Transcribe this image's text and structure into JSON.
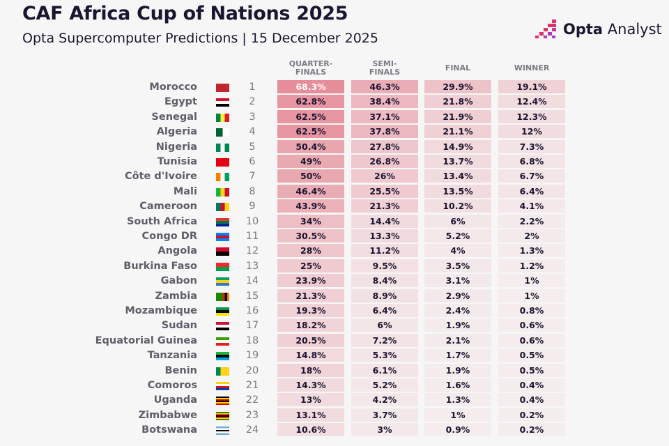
{
  "title": "CAF Africa Cup of Nations 2025",
  "subtitle": "Opta Supercomputer Predictions | 15 December 2025",
  "logo": {
    "bold": "Opta",
    "regular": " Analyst"
  },
  "accent": "#e0707f",
  "chart_data": {
    "type": "table",
    "columns": [
      "QUARTER-\nFINALS",
      "SEMI-\nFINALS",
      "FINAL",
      "WINNER"
    ],
    "column_labels": [
      [
        "QUARTER-",
        "FINALS"
      ],
      [
        "SEMI-",
        "FINALS"
      ],
      [
        "FINAL",
        ""
      ],
      [
        "WINNER",
        ""
      ]
    ],
    "rows": [
      {
        "team": "Morocco",
        "rank": "1",
        "flag": {
          "dir": "v",
          "colors": [
            "#c1272d"
          ]
        },
        "values": [
          68.3,
          46.3,
          29.9,
          19.1
        ]
      },
      {
        "team": "Egypt",
        "rank": "2",
        "flag": {
          "dir": "h",
          "colors": [
            "#ce1126",
            "#ffffff",
            "#000000"
          ]
        },
        "values": [
          62.8,
          38.4,
          21.8,
          12.4
        ]
      },
      {
        "team": "Senegal",
        "rank": "3",
        "flag": {
          "dir": "v",
          "colors": [
            "#00853f",
            "#fdef42",
            "#e31b23"
          ]
        },
        "values": [
          62.5,
          37.1,
          21.9,
          12.3
        ]
      },
      {
        "team": "Algeria",
        "rank": "4",
        "flag": {
          "dir": "v",
          "colors": [
            "#006233",
            "#ffffff"
          ]
        },
        "values": [
          62.5,
          37.8,
          21.1,
          12
        ]
      },
      {
        "team": "Nigeria",
        "rank": "5",
        "flag": {
          "dir": "v",
          "colors": [
            "#008751",
            "#ffffff",
            "#008751"
          ]
        },
        "values": [
          50.4,
          27.8,
          14.9,
          7.3
        ]
      },
      {
        "team": "Tunisia",
        "rank": "6",
        "flag": {
          "dir": "v",
          "colors": [
            "#e70013"
          ]
        },
        "values": [
          49,
          26.8,
          13.7,
          6.8
        ]
      },
      {
        "team": "Côte d'Ivoire",
        "rank": "7",
        "flag": {
          "dir": "v",
          "colors": [
            "#f77f00",
            "#ffffff",
            "#009e60"
          ]
        },
        "values": [
          50,
          26,
          13.4,
          6.7
        ]
      },
      {
        "team": "Mali",
        "rank": "8",
        "flag": {
          "dir": "v",
          "colors": [
            "#14b53a",
            "#fcd116",
            "#ce1126"
          ]
        },
        "values": [
          46.4,
          25.5,
          13.5,
          6.4
        ]
      },
      {
        "team": "Cameroon",
        "rank": "9",
        "flag": {
          "dir": "v",
          "colors": [
            "#007a5e",
            "#ce1126",
            "#fcd116"
          ]
        },
        "values": [
          43.9,
          21.3,
          10.2,
          4.1
        ]
      },
      {
        "team": "South Africa",
        "rank": "10",
        "flag": {
          "dir": "h",
          "colors": [
            "#de3831",
            "#007749",
            "#002395"
          ]
        },
        "values": [
          34,
          14.4,
          6,
          2.2
        ]
      },
      {
        "team": "Congo DR",
        "rank": "11",
        "flag": {
          "dir": "h",
          "colors": [
            "#007fff",
            "#ce1021",
            "#007fff"
          ]
        },
        "values": [
          30.5,
          13.3,
          5.2,
          2
        ]
      },
      {
        "team": "Angola",
        "rank": "12",
        "flag": {
          "dir": "h",
          "colors": [
            "#cc092f",
            "#000000"
          ]
        },
        "values": [
          28,
          11.2,
          4,
          1.3
        ]
      },
      {
        "team": "Burkina Faso",
        "rank": "13",
        "flag": {
          "dir": "h",
          "colors": [
            "#ef2b2d",
            "#009e49"
          ]
        },
        "values": [
          25,
          9.5,
          3.5,
          1.2
        ]
      },
      {
        "team": "Gabon",
        "rank": "14",
        "flag": {
          "dir": "h",
          "colors": [
            "#009e60",
            "#fcd116",
            "#3a75c4"
          ]
        },
        "values": [
          23.9,
          8.4,
          3.1,
          1
        ]
      },
      {
        "team": "Zambia",
        "rank": "15",
        "flag": {
          "dir": "v",
          "colors": [
            "#198a00",
            "#198a00",
            "#198a00",
            "#de2010",
            "#000000",
            "#ef7d00"
          ]
        },
        "values": [
          21.3,
          8.9,
          2.9,
          1
        ]
      },
      {
        "team": "Mozambique",
        "rank": "16",
        "flag": {
          "dir": "h",
          "colors": [
            "#009a44",
            "#000000",
            "#fce100"
          ]
        },
        "values": [
          19.3,
          6.4,
          2.4,
          0.8
        ]
      },
      {
        "team": "Sudan",
        "rank": "17",
        "flag": {
          "dir": "h",
          "colors": [
            "#d21034",
            "#ffffff",
            "#000000"
          ]
        },
        "values": [
          18.2,
          6,
          1.9,
          0.6
        ]
      },
      {
        "team": "Equatorial Guinea",
        "rank": "18",
        "flag": {
          "dir": "h",
          "colors": [
            "#3e9a00",
            "#ffffff",
            "#e32118"
          ]
        },
        "values": [
          20.5,
          7.2,
          2.1,
          0.6
        ]
      },
      {
        "team": "Tanzania",
        "rank": "19",
        "flag": {
          "dir": "h",
          "colors": [
            "#1eb53a",
            "#000000",
            "#00a3dd"
          ]
        },
        "values": [
          14.8,
          5.3,
          1.7,
          0.5
        ]
      },
      {
        "team": "Benin",
        "rank": "20",
        "flag": {
          "dir": "v",
          "colors": [
            "#008751",
            "#fcd116",
            "#fcd116"
          ]
        },
        "values": [
          18,
          6.1,
          1.9,
          0.5
        ]
      },
      {
        "team": "Comoros",
        "rank": "21",
        "flag": {
          "dir": "h",
          "colors": [
            "#ffd100",
            "#ffffff",
            "#ce1126",
            "#003da5"
          ]
        },
        "values": [
          14.3,
          5.2,
          1.6,
          0.4
        ]
      },
      {
        "team": "Uganda",
        "rank": "22",
        "flag": {
          "dir": "h",
          "colors": [
            "#000000",
            "#fcdc04",
            "#d90000",
            "#000000",
            "#fcdc04",
            "#d90000"
          ]
        },
        "values": [
          13,
          4.2,
          1.3,
          0.4
        ]
      },
      {
        "team": "Zimbabwe",
        "rank": "23",
        "flag": {
          "dir": "h",
          "colors": [
            "#006400",
            "#ffd200",
            "#d40000",
            "#000000",
            "#d40000",
            "#ffd200",
            "#006400"
          ]
        },
        "values": [
          13.1,
          3.7,
          1,
          0.2
        ]
      },
      {
        "team": "Botswana",
        "rank": "24",
        "flag": {
          "dir": "h",
          "colors": [
            "#75aadb",
            "#ffffff",
            "#000000",
            "#ffffff",
            "#75aadb"
          ]
        },
        "values": [
          10.6,
          3,
          0.9,
          0.2
        ]
      }
    ]
  }
}
